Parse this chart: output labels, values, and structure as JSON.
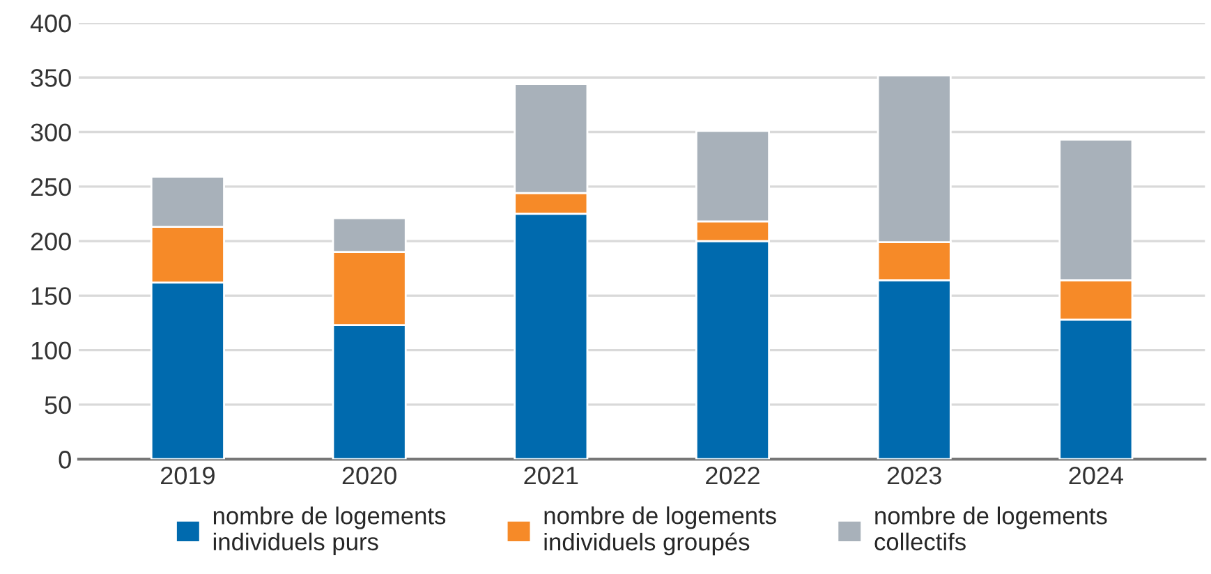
{
  "chart_data": {
    "type": "bar",
    "stacked": true,
    "categories": [
      "2019",
      "2020",
      "2021",
      "2022",
      "2023",
      "2024"
    ],
    "series": [
      {
        "name": "nombre de logements\nindividuels purs",
        "color": "#006aae",
        "values": [
          162,
          123,
          225,
          200,
          164,
          128
        ]
      },
      {
        "name": "nombre de logements\nindividuels groupés",
        "color": "#f68a28",
        "values": [
          51,
          67,
          19,
          18,
          35,
          36
        ]
      },
      {
        "name": "nombre de logements\ncollectifs",
        "color": "#a8b1ba",
        "values": [
          46,
          31,
          100,
          83,
          153,
          129
        ]
      }
    ],
    "ylim": [
      0,
      400
    ],
    "yticks": [
      0,
      50,
      100,
      150,
      200,
      250,
      300,
      350,
      400
    ],
    "grid": "y",
    "legend": "bottom"
  }
}
